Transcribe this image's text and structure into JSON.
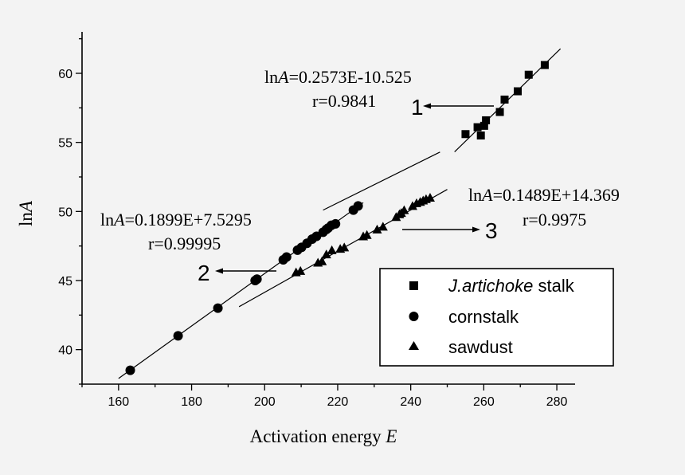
{
  "chart_data": {
    "type": "scatter",
    "title": "",
    "xlabel": "Activation energy",
    "xlabel_var": "E",
    "ylabel_prefix": "ln",
    "ylabel_var": "A",
    "xlim": [
      150,
      285
    ],
    "ylim": [
      37.5,
      63
    ],
    "xticks": [
      160,
      180,
      200,
      220,
      240,
      260,
      280
    ],
    "yticks": [
      40,
      45,
      50,
      55,
      60
    ],
    "legend_position": "bottom-right",
    "series": [
      {
        "name": "J.artichoke stalk",
        "name_italic": "J.artichoke",
        "name_rest": " stalk",
        "marker": "square",
        "color": "#000000",
        "x": [
          255,
          258.3,
          259.2,
          260.1,
          260.6,
          264.4,
          265.7,
          269.3,
          272.3,
          276.7
        ],
        "y": [
          55.6,
          56.1,
          55.5,
          56.2,
          56.6,
          57.2,
          58.1,
          58.7,
          59.9,
          60.6
        ],
        "fit": {
          "slope": 0.2573,
          "intercept": -10.525,
          "x_range": [
            252,
            281
          ]
        }
      },
      {
        "name": "cornstalk",
        "marker": "circle",
        "color": "#000000",
        "x": [
          163.2,
          176.3,
          187.2,
          197.4,
          197.9,
          205.1,
          206.0,
          209.0,
          210.1,
          211.6,
          213.0,
          214.2,
          216.0,
          216.9,
          217.4,
          218.3,
          219.4,
          224.3,
          225.6
        ],
        "y": [
          38.5,
          41.0,
          43.0,
          45.0,
          45.1,
          46.5,
          46.7,
          47.2,
          47.4,
          47.7,
          48.0,
          48.2,
          48.5,
          48.7,
          48.8,
          49.0,
          49.1,
          50.1,
          50.4
        ],
        "fit": {
          "slope": 0.1899,
          "intercept": 7.5295,
          "x_range": [
            160,
            227
          ]
        }
      },
      {
        "name": "sawdust",
        "marker": "triangle",
        "color": "#000000",
        "x": [
          208.6,
          209.8,
          214.6,
          215.7,
          216.9,
          218.4,
          220.7,
          221.8,
          227.0,
          228.0,
          230.8,
          232.4,
          236.0,
          236.9,
          237.4,
          238.2,
          240.5,
          241.6,
          242.6,
          243.4,
          244.2,
          245.3
        ],
        "y": [
          45.6,
          45.7,
          46.3,
          46.4,
          46.9,
          47.2,
          47.3,
          47.4,
          48.2,
          48.3,
          48.7,
          48.9,
          49.6,
          49.8,
          49.9,
          50.1,
          50.4,
          50.6,
          50.7,
          50.8,
          50.9,
          51.0
        ],
        "fit": {
          "slope": 0.1489,
          "intercept": 14.369,
          "x_range": [
            193,
            250
          ]
        }
      }
    ],
    "extra_line": {
      "x": [
        216,
        248
      ],
      "y": [
        50.1,
        54.3
      ]
    },
    "annotations": {
      "eq1_pre": "ln",
      "eq1_var": "A",
      "eq1_post": "=0.2573E-10.525",
      "r1": "r=0.9841",
      "eq2_pre": "ln",
      "eq2_var": "A",
      "eq2_post": "=0.1899E+7.5295",
      "r2": "r=0.99995",
      "eq3_pre": "ln",
      "eq3_var": "A",
      "eq3_post": "=0.1489E+14.369",
      "r3": "r=0.9975",
      "label1": "1",
      "label2": "2",
      "label3": "3"
    }
  }
}
